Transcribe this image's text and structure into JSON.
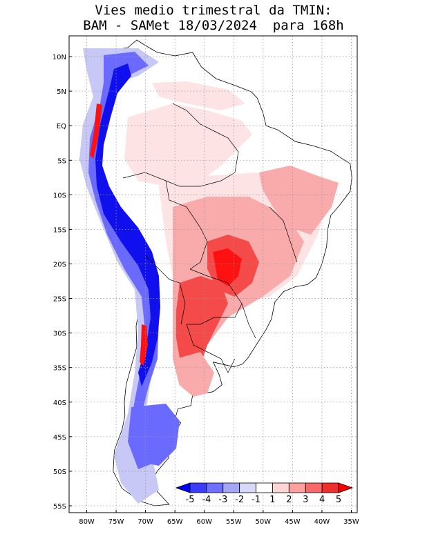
{
  "title": {
    "line1": "Vies medio trimestral da TMIN:",
    "line2": "BAM - SAMet 18/03/2024  para 168h"
  },
  "map": {
    "lon_range": [
      -83,
      -34
    ],
    "lat_range": [
      -56,
      13
    ],
    "gridlines": true,
    "lat_ticks": [
      {
        "value": 10,
        "label": "10N"
      },
      {
        "value": 5,
        "label": "5N"
      },
      {
        "value": 0,
        "label": "EQ"
      },
      {
        "value": -5,
        "label": "5S"
      },
      {
        "value": -10,
        "label": "10S"
      },
      {
        "value": -15,
        "label": "15S"
      },
      {
        "value": -20,
        "label": "20S"
      },
      {
        "value": -25,
        "label": "25S"
      },
      {
        "value": -30,
        "label": "30S"
      },
      {
        "value": -35,
        "label": "35S"
      },
      {
        "value": -40,
        "label": "40S"
      },
      {
        "value": -45,
        "label": "45S"
      },
      {
        "value": -50,
        "label": "50S"
      },
      {
        "value": -55,
        "label": "55S"
      }
    ],
    "lon_ticks": [
      {
        "value": -80,
        "label": "80W"
      },
      {
        "value": -75,
        "label": "75W"
      },
      {
        "value": -70,
        "label": "70W"
      },
      {
        "value": -65,
        "label": "65W"
      },
      {
        "value": -60,
        "label": "60W"
      },
      {
        "value": -55,
        "label": "55W"
      },
      {
        "value": -50,
        "label": "50W"
      },
      {
        "value": -45,
        "label": "45W"
      },
      {
        "value": -40,
        "label": "40W"
      },
      {
        "value": -35,
        "label": "35W"
      }
    ]
  },
  "colorbar": {
    "labels": [
      "-5",
      "-4",
      "-3",
      "-2",
      "-1",
      "1",
      "2",
      "3",
      "4",
      "5"
    ],
    "colors": [
      "#0000ff",
      "#3c3cff",
      "#7070ff",
      "#a5a5f5",
      "#d8d8f8",
      "#ffffff",
      "#fdd5d5",
      "#fca0a0",
      "#f86a6a",
      "#f02e2e",
      "#ff0000"
    ]
  },
  "colors": {
    "cold_strong": "#1010ee",
    "cold_medium": "#6a6aff",
    "cold_light": "#c8c8f6",
    "neutral": "#ffffff",
    "warm_light": "#fde3e3",
    "warm_medium": "#f9aaaa",
    "warm_strong": "#f44a4a",
    "warm_extreme": "#ff1111"
  }
}
